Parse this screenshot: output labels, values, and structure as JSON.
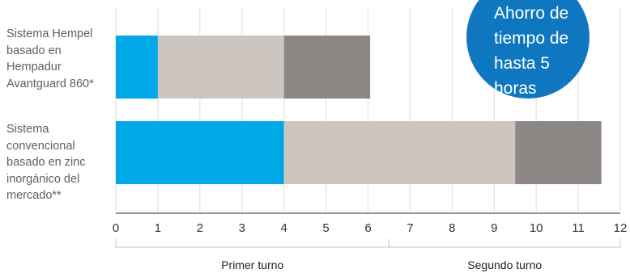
{
  "chart_data": {
    "type": "bar",
    "orientation": "horizontal",
    "stacked": true,
    "categories": [
      "Sistema Hempel basado en Hempadur Avantguard 860*",
      "Sistema convencional basado en zinc inorgánico del mercado**"
    ],
    "category_lines": [
      [
        "Sistema Hempel",
        "basado en",
        "Hempadur",
        "Avantguard 860*"
      ],
      [
        "Sistema",
        "convencional",
        "basado en zinc",
        "inorgánico del",
        "mercado**"
      ]
    ],
    "series": [
      {
        "values": [
          1,
          4
        ],
        "color": "#00a8e8"
      },
      {
        "values": [
          3,
          5.5
        ],
        "color": "#cdc5bf"
      },
      {
        "values": [
          2.05,
          2.05
        ],
        "color": "#8c8784"
      }
    ],
    "xlim": [
      0,
      12
    ],
    "xticks": [
      "0",
      "1",
      "2",
      "3",
      "4",
      "5",
      "6",
      "7",
      "8",
      "9",
      "10",
      "11",
      "12"
    ],
    "grid": true,
    "shifts": [
      {
        "label": "Primer turno",
        "from": 0,
        "to": 6.5
      },
      {
        "label": "Segundo turno",
        "from": 6.5,
        "to": 12
      }
    ],
    "badge": {
      "lines": [
        "Ahorro de",
        "tiempo de",
        "hasta 5",
        "horas"
      ],
      "color": "#0f77c0"
    }
  }
}
